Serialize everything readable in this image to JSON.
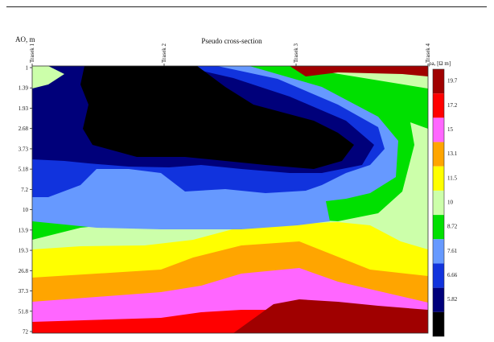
{
  "chart_data": {
    "type": "heatmap",
    "title": "Pseudo cross-section",
    "ylabel": "AO, m",
    "legend_title": "ρa, [Ω m]",
    "x_labels": [
      "Trasek 1",
      "Trasek 2",
      "Trasek 3",
      "Trasek 4"
    ],
    "x_ticks": [
      1,
      2,
      3,
      4
    ],
    "y_ticks": [
      "1",
      "1.39",
      "1.93",
      "2.68",
      "3.73",
      "5.18",
      "7.2",
      "10",
      "13.9",
      "19.3",
      "26.8",
      "37.3",
      "51.8",
      "72"
    ],
    "legend": [
      {
        "label": "19.7",
        "color": "#a00000"
      },
      {
        "label": "17.2",
        "color": "#ff0000"
      },
      {
        "label": "15",
        "color": "#ff66ff"
      },
      {
        "label": "13.1",
        "color": "#ffa500"
      },
      {
        "label": "11.5",
        "color": "#ffff00"
      },
      {
        "label": "10",
        "color": "#ccffaa"
      },
      {
        "label": "8.72",
        "color": "#00e000"
      },
      {
        "label": "7.61",
        "color": "#6699ff"
      },
      {
        "label": "6.66",
        "color": "#1133dd"
      },
      {
        "label": "5.82",
        "color": "#00007a"
      },
      {
        "label": "",
        "color": "#000000"
      }
    ],
    "background_color": "#ff0000"
  }
}
